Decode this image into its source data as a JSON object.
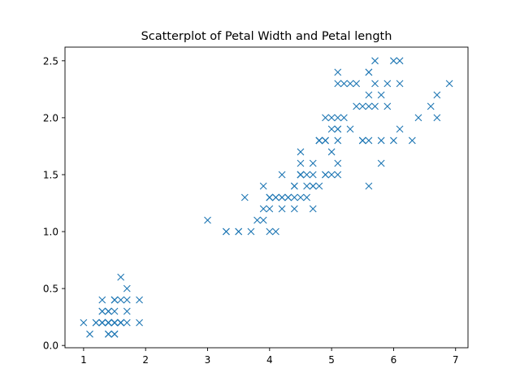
{
  "chart_data": {
    "type": "scatter",
    "title": "Scatterplot of Petal Width and Petal length",
    "xlabel": "",
    "ylabel": "",
    "xlim": [
      0.7,
      7.2
    ],
    "ylim": [
      -0.02,
      2.62
    ],
    "x_ticks": [
      1,
      2,
      3,
      4,
      5,
      6,
      7
    ],
    "x_tick_labels": [
      "1",
      "2",
      "3",
      "4",
      "5",
      "6",
      "7"
    ],
    "y_ticks": [
      0.0,
      0.5,
      1.0,
      1.5,
      2.0,
      2.5
    ],
    "y_tick_labels": [
      "0.0",
      "0.5",
      "1.0",
      "1.5",
      "2.0",
      "2.5"
    ],
    "grid": false,
    "marker": "x",
    "color": "#1f77b4",
    "series": [
      {
        "x": [
          1.4,
          1.4,
          1.3,
          1.5,
          1.4,
          1.7,
          1.4,
          1.5,
          1.4,
          1.5,
          1.5,
          1.6,
          1.4,
          1.1,
          1.2,
          1.5,
          1.3,
          1.4,
          1.7,
          1.5,
          1.7,
          1.5,
          1.0,
          1.7,
          1.9,
          1.6,
          1.6,
          1.5,
          1.4,
          1.6,
          1.6,
          1.5,
          1.5,
          1.4,
          1.5,
          1.2,
          1.3,
          1.4,
          1.3,
          1.5,
          1.3,
          1.3,
          1.3,
          1.6,
          1.9,
          1.4,
          1.6,
          1.4,
          1.5,
          1.4,
          4.7,
          4.5,
          4.9,
          4.0,
          4.6,
          4.5,
          4.7,
          3.3,
          4.6,
          3.9,
          3.5,
          4.2,
          4.0,
          4.7,
          3.6,
          4.4,
          4.5,
          4.1,
          4.5,
          3.9,
          4.8,
          4.0,
          4.9,
          4.7,
          4.3,
          4.4,
          4.8,
          5.0,
          4.5,
          3.5,
          3.8,
          3.7,
          3.9,
          5.1,
          4.5,
          4.5,
          4.7,
          4.4,
          4.1,
          4.0,
          4.4,
          4.6,
          4.0,
          3.3,
          4.2,
          4.2,
          4.2,
          4.3,
          3.0,
          4.1,
          6.0,
          5.1,
          5.9,
          5.6,
          5.8,
          6.6,
          4.5,
          6.3,
          5.8,
          6.1,
          5.1,
          5.3,
          5.5,
          5.0,
          5.1,
          5.3,
          5.5,
          6.7,
          6.9,
          5.0,
          5.7,
          4.9,
          6.7,
          4.9,
          5.7,
          6.0,
          4.8,
          4.9,
          5.6,
          5.8,
          6.1,
          6.4,
          5.6,
          5.1,
          5.6,
          6.1,
          5.6,
          5.5,
          4.8,
          5.4,
          5.6,
          5.1,
          5.1,
          5.9,
          5.7,
          5.2,
          5.0,
          5.2,
          5.4,
          5.1
        ],
        "y": [
          0.2,
          0.2,
          0.2,
          0.2,
          0.2,
          0.4,
          0.3,
          0.2,
          0.2,
          0.1,
          0.2,
          0.2,
          0.1,
          0.1,
          0.2,
          0.4,
          0.4,
          0.3,
          0.3,
          0.3,
          0.2,
          0.4,
          0.2,
          0.5,
          0.2,
          0.2,
          0.4,
          0.2,
          0.2,
          0.2,
          0.2,
          0.4,
          0.1,
          0.2,
          0.2,
          0.2,
          0.2,
          0.1,
          0.2,
          0.2,
          0.3,
          0.3,
          0.2,
          0.6,
          0.4,
          0.3,
          0.2,
          0.2,
          0.2,
          0.2,
          1.4,
          1.5,
          1.5,
          1.3,
          1.5,
          1.3,
          1.6,
          1.0,
          1.3,
          1.4,
          1.0,
          1.5,
          1.0,
          1.4,
          1.3,
          1.4,
          1.5,
          1.0,
          1.5,
          1.1,
          1.8,
          1.3,
          1.5,
          1.2,
          1.3,
          1.4,
          1.4,
          1.7,
          1.5,
          1.0,
          1.1,
          1.0,
          1.2,
          1.6,
          1.5,
          1.6,
          1.5,
          1.3,
          1.3,
          1.3,
          1.2,
          1.4,
          1.2,
          1.0,
          1.3,
          1.2,
          1.3,
          1.3,
          1.1,
          1.3,
          2.5,
          1.9,
          2.1,
          1.8,
          2.2,
          2.1,
          1.7,
          1.8,
          1.8,
          2.5,
          2.0,
          1.9,
          2.1,
          2.0,
          2.4,
          2.3,
          1.8,
          2.2,
          2.3,
          1.5,
          2.3,
          2.0,
          2.0,
          1.8,
          2.1,
          1.8,
          1.8,
          1.8,
          2.1,
          1.6,
          1.9,
          2.0,
          2.2,
          1.5,
          1.4,
          2.3,
          2.4,
          1.8,
          1.8,
          2.1,
          2.4,
          2.3,
          1.9,
          2.3,
          2.5,
          2.3,
          1.9,
          2.0,
          2.3,
          1.8
        ]
      }
    ]
  }
}
